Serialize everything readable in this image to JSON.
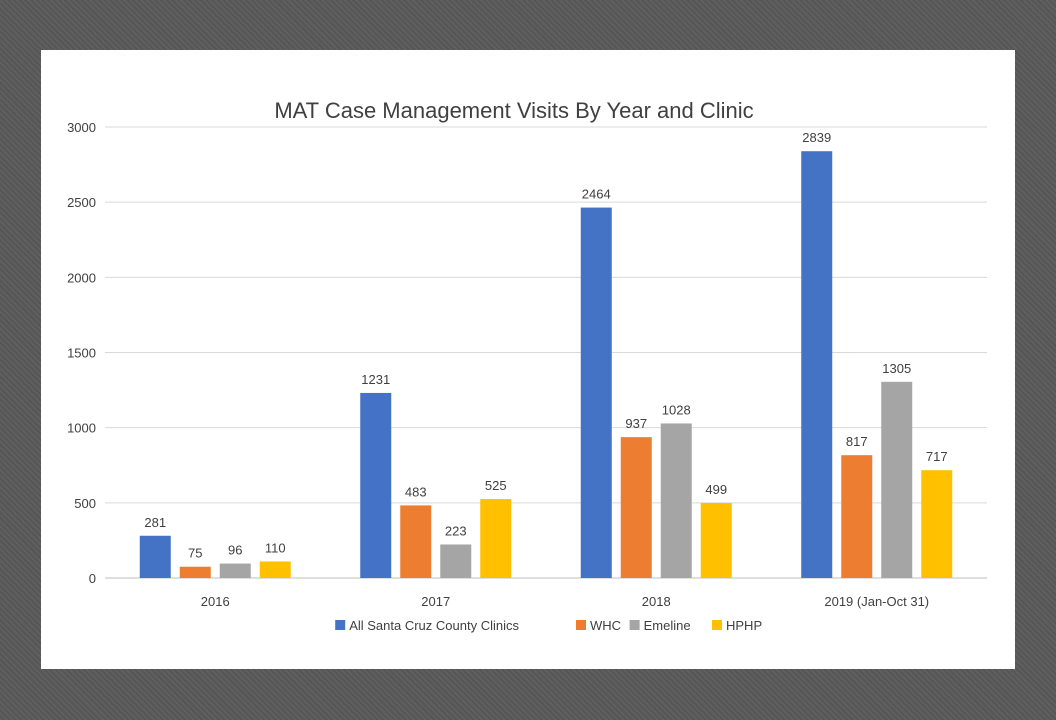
{
  "chart_data": {
    "type": "bar",
    "title": "MAT Case Management Visits By Year and Clinic",
    "xlabel": "",
    "ylabel": "",
    "categories": [
      "2016",
      "2017",
      "2018",
      "2019 (Jan-Oct 31)"
    ],
    "ylim": [
      0,
      3000
    ],
    "yticks": [
      "0",
      "500",
      "1000",
      "1500",
      "2000",
      "2500",
      "3000"
    ],
    "grid": true,
    "legend_position": "bottom",
    "series": [
      {
        "name": "All Santa Cruz County Clinics",
        "color": "#4472C4",
        "values": [
          281,
          1231,
          2464,
          2839
        ]
      },
      {
        "name": "WHC",
        "color": "#ED7D31",
        "values": [
          75,
          483,
          937,
          817
        ]
      },
      {
        "name": "Emeline",
        "color": "#A5A5A5",
        "values": [
          96,
          223,
          1028,
          1305
        ]
      },
      {
        "name": "HPHP",
        "color": "#FFC000",
        "values": [
          110,
          525,
          499,
          717
        ]
      }
    ]
  }
}
